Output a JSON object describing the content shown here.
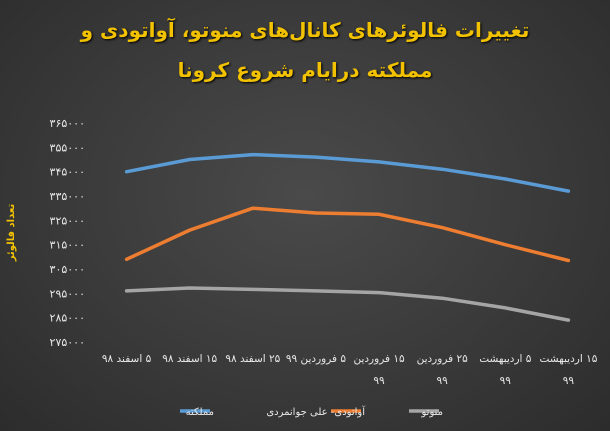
{
  "chart_data": {
    "type": "line",
    "title_line1": "تغییرات فالوئرهای کانال‌های منوتو، آواتودی و",
    "title_line2": "مملکته درایام شروع کرونا",
    "ylabel": "تعداد فالوئر",
    "ylim": [
      275000,
      365000
    ],
    "yticks": [
      "۳۶۵۰۰۰",
      "۳۵۵۰۰۰",
      "۳۴۵۰۰۰",
      "۳۳۵۰۰۰",
      "۳۲۵۰۰۰",
      "۳۱۵۰۰۰",
      "۳۰۵۰۰۰",
      "۲۹۵۰۰۰",
      "۲۸۵۰۰۰",
      "۲۷۵۰۰۰"
    ],
    "ytick_values": [
      365000,
      355000,
      345000,
      335000,
      325000,
      315000,
      305000,
      295000,
      285000,
      275000
    ],
    "categories": [
      [
        "۵ اسفند ۹۸"
      ],
      [
        "۱۵ اسفند ۹۸"
      ],
      [
        "۲۵ اسفند ۹۸"
      ],
      [
        "۵ فروردین ۹۹"
      ],
      [
        "۱۵ فروردین",
        "۹۹"
      ],
      [
        "۲۵ فروردین",
        "۹۹"
      ],
      [
        "۵ اردیبهشت",
        "۹۹"
      ],
      [
        "۱۵ اردیبهشت",
        "۹۹"
      ]
    ],
    "series": [
      {
        "name": "مملکته",
        "color": "#5b9bd5",
        "values": [
          345000,
          350000,
          352000,
          351000,
          349000,
          346000,
          342000,
          337000
        ]
      },
      {
        "name": "آواتودی- علی جوانمردی",
        "color": "#ed7d31",
        "values": [
          309000,
          321000,
          330000,
          328000,
          327500,
          322000,
          315000,
          308500
        ]
      },
      {
        "name": "منوتو",
        "color": "#a5a5a5",
        "values": [
          296000,
          297200,
          296600,
          296000,
          295300,
          293000,
          289000,
          284000
        ]
      }
    ],
    "grid": false,
    "legend_position": "bottom"
  }
}
